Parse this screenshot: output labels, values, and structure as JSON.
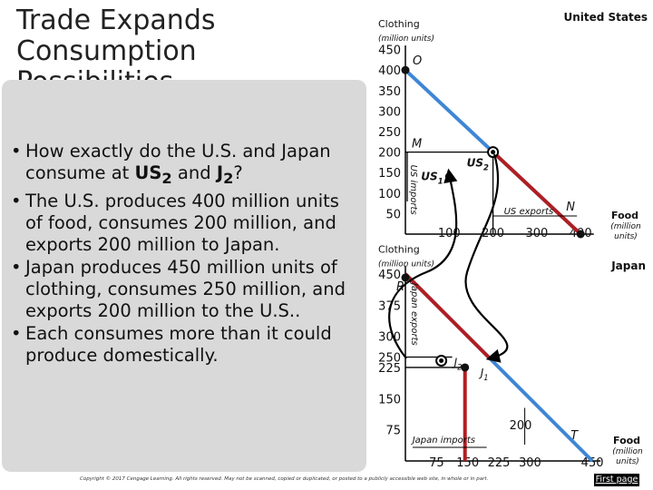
{
  "slide": {
    "title_line1": "Trade Expands",
    "title_line2": "Consumption Possibilities",
    "bullets": [
      {
        "pre": "How exactly do the U.S. and Japan consume at ",
        "b1": "US",
        "s1": "2",
        "mid": " and ",
        "b2": "J",
        "s2": "2",
        "post": "?"
      },
      {
        "text": "The U.S. produces 400 million units of food, consumes 200 million, and exports 200 million to Japan."
      },
      {
        "text": "Japan produces 450 million units of clothing, consumes 250 million, and exports 200 million to the U.S.."
      },
      {
        "text": "Each consumes more than it could produce domestically."
      }
    ],
    "bullet_char": "•",
    "copyright": "Copyright © 2017 Cengage Learning. All rights reserved. May not be scanned, copied or duplicated, or posted to a publicly accessible web site, in whole or in part.",
    "first_page_label": "First page"
  },
  "colors": {
    "ppf": "#3f86d4",
    "trade": "#b01e22",
    "arrow": "#000000",
    "background_panel": "#d9d9d9"
  },
  "chart_data": [
    {
      "type": "line",
      "name": "United States",
      "title": "United States",
      "ylabel": "Clothing",
      "ylabel_unit": "(million units)",
      "xlabel": "Food",
      "xlabel_unit_line1": "(million",
      "xlabel_unit_line2": "units)",
      "y_ticks": [
        "450",
        "400",
        "350",
        "300",
        "250",
        "200",
        "150",
        "100",
        "50"
      ],
      "x_ticks": [
        "100",
        "200",
        "300",
        "400"
      ],
      "y_tick_values": [
        450,
        400,
        350,
        300,
        250,
        200,
        150,
        100,
        50
      ],
      "x_tick_values": [
        100,
        200,
        300,
        400
      ],
      "xlim": [
        0,
        430
      ],
      "ylim": [
        0,
        460
      ],
      "series": [
        {
          "name": "production possibilities",
          "points": [
            [
              0,
              400
            ],
            [
              400,
              0
            ]
          ]
        },
        {
          "name": "trade line",
          "points": [
            [
              400,
              0
            ],
            [
              200,
              200
            ]
          ]
        }
      ],
      "points": [
        {
          "label": "O",
          "x": 0,
          "y": 400,
          "dot": true
        },
        {
          "label": "M",
          "x": 0,
          "y": 200,
          "dot": false
        },
        {
          "label": "US",
          "sub": "1",
          "x": 100,
          "y": 140,
          "dot": true
        },
        {
          "label": "US",
          "sub": "2",
          "x": 200,
          "y": 200,
          "dot": true
        },
        {
          "label": "N",
          "x": 400,
          "y": 0,
          "dot": true
        }
      ],
      "annotations": {
        "imports": "US imports",
        "exports": "US exports"
      }
    },
    {
      "type": "line",
      "name": "Japan",
      "title": "Japan",
      "ylabel": "Clothing",
      "ylabel_unit": "(million units)",
      "xlabel": "Food",
      "xlabel_unit_line1": "(million",
      "xlabel_unit_line2": "units)",
      "y_ticks": [
        "450",
        "375",
        "300",
        "250",
        "225",
        "150",
        "75"
      ],
      "x_ticks": [
        "75",
        "150",
        "225",
        "300",
        "450"
      ],
      "y_tick_values": [
        450,
        375,
        300,
        250,
        225,
        150,
        75
      ],
      "x_tick_values": [
        75,
        150,
        225,
        300,
        450
      ],
      "xlim": [
        0,
        470
      ],
      "ylim": [
        0,
        470
      ],
      "series": [
        {
          "name": "production possibilities",
          "points": [
            [
              0,
              450
            ],
            [
              450,
              0
            ]
          ]
        },
        {
          "name": "trade line",
          "points": [
            [
              0,
              450
            ],
            [
              200,
              250
            ]
          ]
        }
      ],
      "points": [
        {
          "label": "R",
          "x": 0,
          "y": 450,
          "dot": true
        },
        {
          "label": "J",
          "sub": "1",
          "x": 75,
          "y": 225,
          "dot": true
        },
        {
          "label": "J",
          "sub": "2",
          "x": 200,
          "y": 250,
          "dot": true
        },
        {
          "label": "T",
          "x": 450,
          "y": 0,
          "dot": false
        }
      ],
      "extra_labels": {
        "imports_amount": "200"
      },
      "annotations": {
        "imports": "Japan imports",
        "exports": "Japan exports"
      }
    }
  ]
}
